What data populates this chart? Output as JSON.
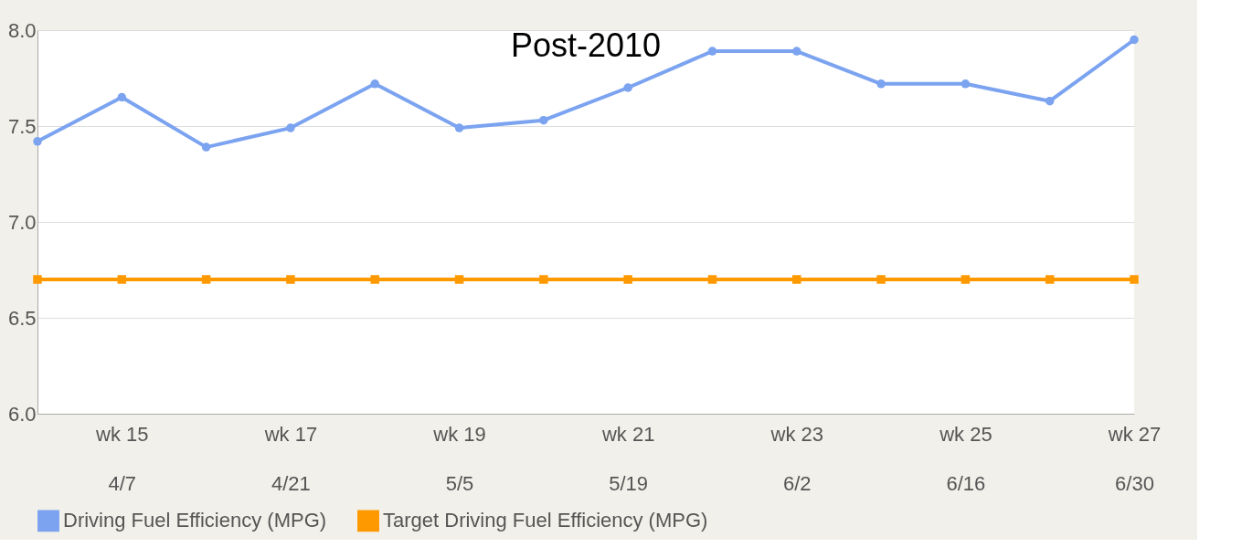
{
  "chart_data": {
    "type": "line",
    "title": "Post-2010",
    "categories": [
      null,
      "wk 15\n4/7",
      null,
      "wk 17\n4/21",
      null,
      "wk 19\n5/5",
      null,
      "wk 21\n5/19",
      null,
      "wk 23\n6/2",
      null,
      "wk 25\n6/16",
      null,
      "wk 27\n6/30"
    ],
    "series": [
      {
        "name": "Driving Fuel Efficiency (MPG)",
        "color": "#7ba3f0",
        "marker": "circle",
        "values": [
          7.42,
          7.65,
          7.39,
          7.49,
          7.72,
          7.49,
          7.53,
          7.7,
          7.89,
          7.89,
          7.72,
          7.72,
          7.63,
          7.95
        ]
      },
      {
        "name": "Target Driving Fuel Efficiency (MPG)",
        "color": "#ff9900",
        "marker": "square",
        "values": [
          6.7,
          6.7,
          6.7,
          6.7,
          6.7,
          6.7,
          6.7,
          6.7,
          6.7,
          6.7,
          6.7,
          6.7,
          6.7,
          6.7
        ]
      }
    ],
    "ylim": [
      6.0,
      8.0
    ],
    "yticks": [
      {
        "value": 6.0,
        "label": "6.0"
      },
      {
        "value": 6.5,
        "label": "6.5"
      },
      {
        "value": 7.0,
        "label": "7.0"
      },
      {
        "value": 7.5,
        "label": "7.5"
      },
      {
        "value": 8.0,
        "label": "8.0"
      }
    ],
    "grid": "y",
    "legend": "bottom"
  }
}
